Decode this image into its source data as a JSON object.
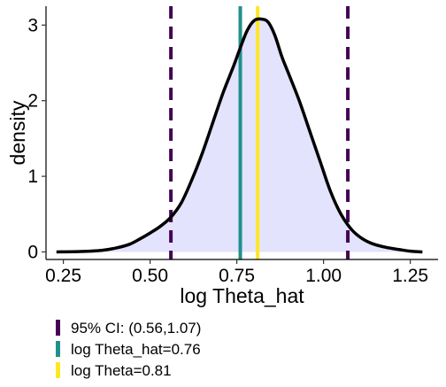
{
  "chart_data": {
    "type": "area",
    "title": "",
    "xlabel": "log Theta_hat",
    "ylabel": "density",
    "xlim": [
      0.2,
      1.33
    ],
    "ylim": [
      -0.1,
      3.25
    ],
    "x_ticks": [
      0.25,
      0.5,
      0.75,
      1.0,
      1.25
    ],
    "x_tick_labels": [
      "0.25",
      "0.50",
      "0.75",
      "1.00",
      "1.25"
    ],
    "y_ticks": [
      0,
      1,
      2,
      3
    ],
    "y_tick_labels": [
      "0",
      "1",
      "2",
      "3"
    ],
    "grid": false,
    "legend_position": "bottom-left",
    "colors": {
      "fill": "#e3e3fd",
      "curve": "#000000",
      "ci": "#440154",
      "estimate": "#21908c",
      "truth": "#fde725"
    },
    "density_curve": {
      "x": [
        0.23,
        0.3,
        0.36,
        0.4,
        0.44,
        0.47,
        0.5,
        0.53,
        0.56,
        0.59,
        0.62,
        0.65,
        0.68,
        0.71,
        0.74,
        0.76,
        0.78,
        0.8,
        0.82,
        0.84,
        0.86,
        0.88,
        0.9,
        0.93,
        0.96,
        0.99,
        1.02,
        1.05,
        1.08,
        1.11,
        1.14,
        1.18,
        1.22,
        1.25,
        1.285
      ],
      "y": [
        0.0,
        0.005,
        0.02,
        0.05,
        0.1,
        0.17,
        0.25,
        0.34,
        0.46,
        0.65,
        0.95,
        1.3,
        1.7,
        2.1,
        2.45,
        2.7,
        2.93,
        3.06,
        3.08,
        3.04,
        2.86,
        2.58,
        2.35,
        2.0,
        1.6,
        1.2,
        0.8,
        0.5,
        0.3,
        0.18,
        0.11,
        0.06,
        0.03,
        0.01,
        0.0
      ]
    },
    "vlines": [
      {
        "label": "95% CI: (0.56,1.07)",
        "x": [
          0.56,
          1.07
        ],
        "style": "dashed",
        "color_key": "ci"
      },
      {
        "label": "log Theta_hat=0.76",
        "x": [
          0.76
        ],
        "style": "solid",
        "color_key": "estimate"
      },
      {
        "label": "log Theta=0.81",
        "x": [
          0.81
        ],
        "style": "solid",
        "color_key": "truth"
      }
    ]
  }
}
